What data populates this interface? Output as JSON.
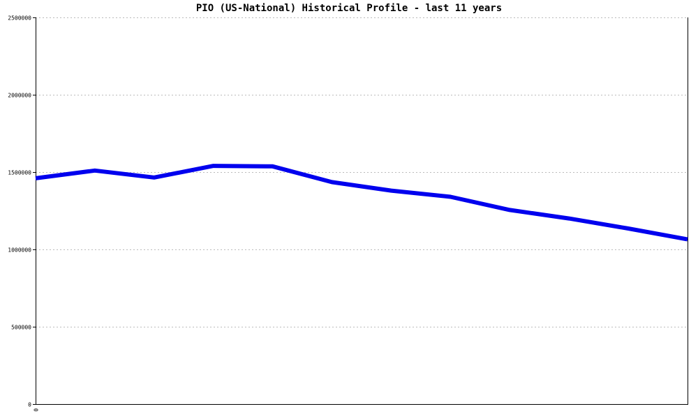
{
  "colors": {
    "line": "#0000ee",
    "grid": "#bbbbbb",
    "axis": "#000000",
    "background": "#ffffff"
  },
  "chart_data": {
    "type": "line",
    "title": "PIO (US-National) Historical Profile - last 11 years",
    "xlabel": "",
    "ylabel": "",
    "x_tick_labels": [
      "0"
    ],
    "y_ticks": [
      0,
      500000,
      1000000,
      1500000,
      2000000,
      2500000
    ],
    "y_tick_labels": [
      "0",
      "500000",
      "1000000",
      "1500000",
      "2000000",
      "2500000"
    ],
    "ylim": [
      0,
      2500000
    ],
    "grid": true,
    "legend": "none",
    "series": [
      {
        "x": [
          0,
          1,
          2,
          3,
          4,
          5,
          6,
          7,
          8,
          9,
          10,
          11
        ],
        "values": [
          1460000,
          1510000,
          1465000,
          1540000,
          1537000,
          1435000,
          1380000,
          1340000,
          1255000,
          1200000,
          1135000,
          1065000
        ]
      }
    ]
  }
}
